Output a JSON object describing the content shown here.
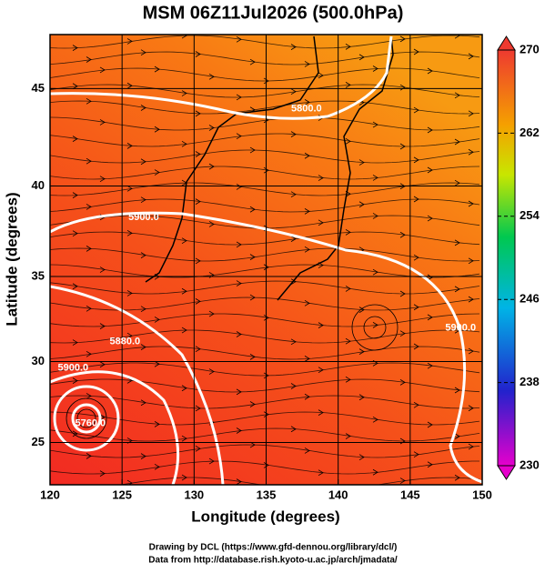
{
  "chart_data": {
    "type": "map",
    "title": "MSM 06Z11Jul2026 (500.0hPa)",
    "x_label": "Longitude (degrees)",
    "y_label": "Latitude  (degrees)",
    "projection": "mercator",
    "xlim": [
      120,
      150
    ],
    "xticks": [
      120,
      125,
      130,
      135,
      140,
      145,
      150
    ],
    "ylim": [
      22.3,
      47.6
    ],
    "yticks": [
      25,
      30,
      35,
      40,
      45
    ],
    "grid": true,
    "contour_labels": [
      {
        "text": "5800.0",
        "lon": 137.8,
        "lat": 44.0
      },
      {
        "text": "5900.0",
        "lon": 126.5,
        "lat": 38.3
      },
      {
        "text": "5900.0",
        "lon": 148.5,
        "lat": 32.0
      },
      {
        "text": "5880.0",
        "lon": 125.2,
        "lat": 31.2
      },
      {
        "text": "5900.0",
        "lon": 121.6,
        "lat": 29.6
      },
      {
        "text": "5760.0",
        "lon": 122.8,
        "lat": 26.2
      }
    ],
    "colorbar": {
      "lim": [
        230,
        270
      ],
      "ticks": [
        230,
        238,
        246,
        254,
        262,
        270
      ]
    },
    "credits": [
      "Drawing by DCL (https://www.gfd-dennou.org/library/dcl/)",
      "Data from http://database.rish.kyoto-u.ac.jp/arch/jmadata/"
    ]
  }
}
